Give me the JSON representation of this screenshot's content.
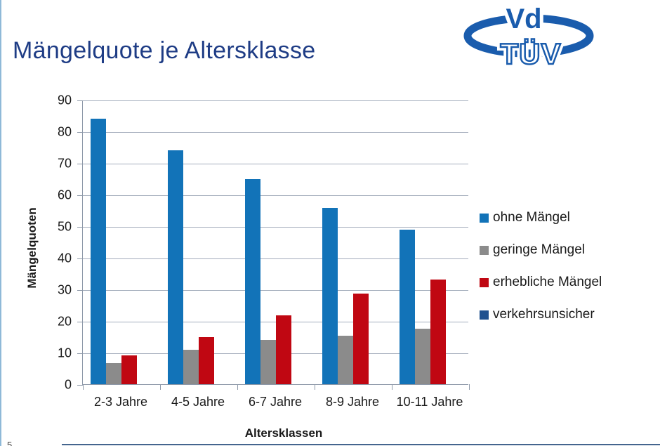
{
  "page": {
    "title": "Mängelquote je Altersklasse",
    "page_number": "5"
  },
  "logo": {
    "top_text": "Vd",
    "bottom_text": "TÜV",
    "color": "#1a5cad"
  },
  "chart_data": {
    "type": "bar",
    "title": "Mängelquote je Altersklasse",
    "xlabel": "Altersklassen",
    "ylabel": "Mängelquoten",
    "ylim": [
      0,
      90
    ],
    "yticks": [
      0,
      10,
      20,
      30,
      40,
      50,
      60,
      70,
      80,
      90
    ],
    "grid": true,
    "legend_position": "right",
    "categories": [
      "2-3 Jahre",
      "4-5 Jahre",
      "6-7 Jahre",
      "8-9 Jahre",
      "10-11 Jahre"
    ],
    "series": [
      {
        "name": "ohne Mängel",
        "color": "#1273b8",
        "values": [
          84.0,
          74.0,
          64.8,
          55.7,
          48.8
        ]
      },
      {
        "name": "geringe Mängel",
        "color": "#8b8b8b",
        "values": [
          6.6,
          11.0,
          13.9,
          15.3,
          17.6
        ]
      },
      {
        "name": "erhebliche Mängel",
        "color": "#c00712",
        "values": [
          9.1,
          14.9,
          21.8,
          28.7,
          33.2
        ]
      },
      {
        "name": "verkehrsunsicher",
        "color": "#20518f",
        "values": [
          0,
          0,
          0,
          0,
          0
        ]
      }
    ]
  }
}
